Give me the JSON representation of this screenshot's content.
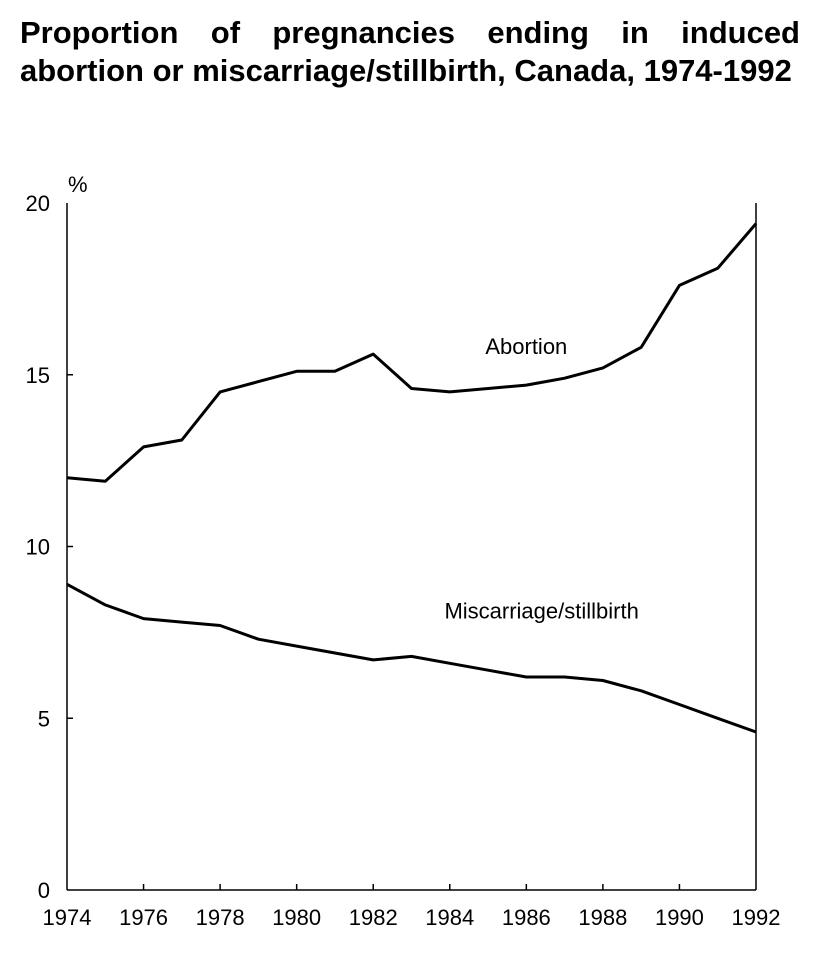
{
  "chart_data": {
    "type": "line",
    "title": "Proportion of pregnancies ending in induced abortion or miscarriage/stillbirth, Canada, 1974-1992",
    "xlabel": "",
    "ylabel": "%",
    "xlim": [
      1974,
      1992
    ],
    "ylim": [
      0,
      20
    ],
    "x_ticks": [
      1974,
      1976,
      1978,
      1980,
      1982,
      1984,
      1986,
      1988,
      1990,
      1992
    ],
    "y_ticks": [
      0,
      5,
      10,
      15,
      20
    ],
    "grid": false,
    "legend": "none (series labelled directly on chart)",
    "x": [
      1974,
      1975,
      1976,
      1977,
      1978,
      1979,
      1980,
      1981,
      1982,
      1983,
      1984,
      1985,
      1986,
      1987,
      1988,
      1989,
      1990,
      1991,
      1992
    ],
    "series": [
      {
        "name": "Abortion",
        "label_at": [
          1986,
          15.6
        ],
        "values": [
          12.0,
          11.9,
          12.9,
          13.1,
          14.5,
          14.8,
          15.1,
          15.1,
          15.6,
          14.6,
          14.5,
          14.6,
          14.7,
          14.9,
          15.2,
          15.8,
          17.6,
          18.1,
          19.4
        ]
      },
      {
        "name": "Miscarriage/stillbirth",
        "label_at": [
          1986.4,
          7.9
        ],
        "values": [
          8.9,
          8.3,
          7.9,
          7.8,
          7.7,
          7.3,
          7.1,
          6.9,
          6.7,
          6.8,
          6.6,
          6.4,
          6.2,
          6.2,
          6.1,
          5.8,
          5.4,
          5.0,
          4.6
        ]
      }
    ]
  }
}
